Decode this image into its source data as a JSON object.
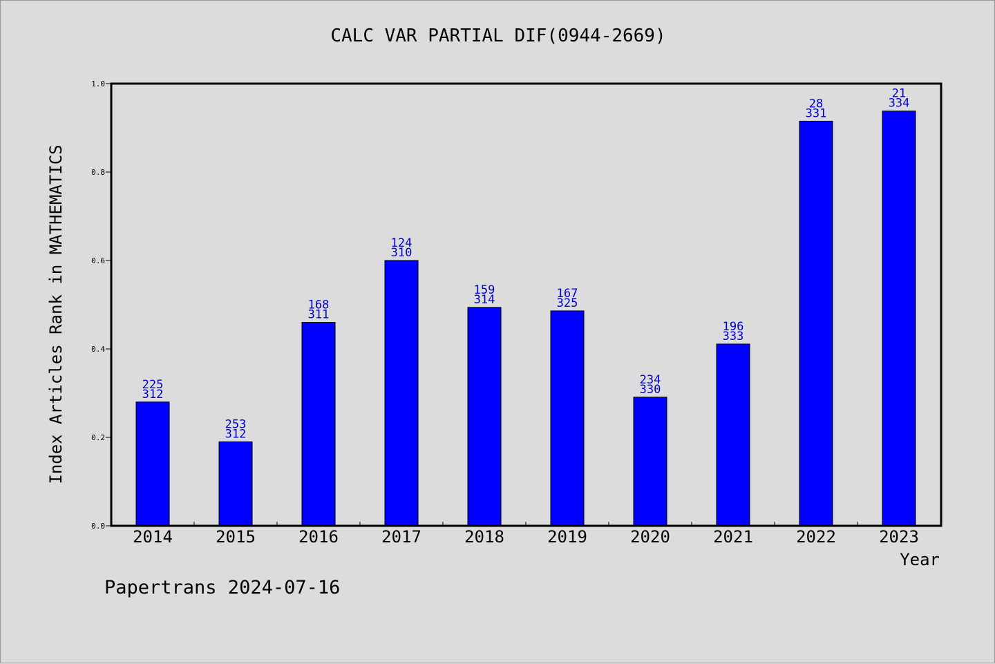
{
  "chart_data": {
    "type": "bar",
    "title": "CALC VAR PARTIAL DIF(0944-2669)",
    "xlabel": "Year",
    "ylabel": "Index Articles Rank in MATHEMATICS",
    "ylim": [
      0.0,
      1.0
    ],
    "yticks": [
      "0.0",
      "0.2",
      "0.4",
      "0.6",
      "0.8",
      "1.0"
    ],
    "categories": [
      "2014",
      "2015",
      "2016",
      "2017",
      "2018",
      "2019",
      "2020",
      "2021",
      "2022",
      "2023"
    ],
    "values": [
      0.28,
      0.19,
      0.46,
      0.6,
      0.494,
      0.486,
      0.291,
      0.411,
      0.915,
      0.938
    ],
    "rank": [
      "225",
      "253",
      "168",
      "124",
      "159",
      "167",
      "234",
      "196",
      "28",
      "21"
    ],
    "total": [
      "312",
      "312",
      "311",
      "310",
      "314",
      "325",
      "330",
      "333",
      "331",
      "334"
    ],
    "bar_color": "#0000ff",
    "label_color": "#0000cc",
    "grid": false
  },
  "footer": {
    "credit": "Papertrans 2024-07-16"
  }
}
